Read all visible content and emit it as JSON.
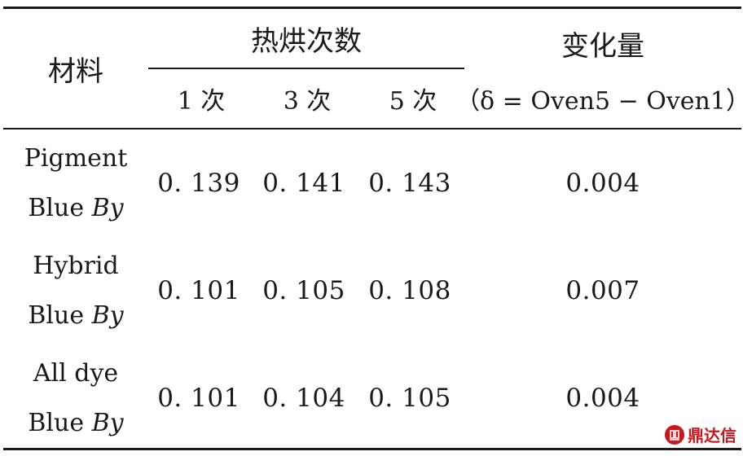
{
  "table": {
    "header": {
      "material": "材料",
      "bake_count": "热烘次数",
      "change": "变化量",
      "change_formula": "（δ = Oven5 − Oven1）",
      "bake_1": "1 次",
      "bake_3": "3 次",
      "bake_5": "5 次"
    },
    "rows": [
      {
        "name_line1": "Pigment",
        "name_line2": "Blue ",
        "name_italic": "By",
        "v1": "0. 139",
        "v3": "0. 141",
        "v5": "0. 143",
        "delta": "0.004"
      },
      {
        "name_line1": "Hybrid",
        "name_line2": "Blue ",
        "name_italic": "By",
        "v1": "0. 101",
        "v3": "0. 105",
        "v5": "0. 108",
        "delta": "0.007"
      },
      {
        "name_line1": "All dye",
        "name_line2": "Blue ",
        "name_italic": "By",
        "v1": "0. 101",
        "v3": "0. 104",
        "v5": "0. 105",
        "delta": "0.004"
      }
    ]
  },
  "watermark": {
    "text": "鼎达信",
    "icon": "dingdaxin-logo-icon",
    "color": "#c8181e"
  }
}
